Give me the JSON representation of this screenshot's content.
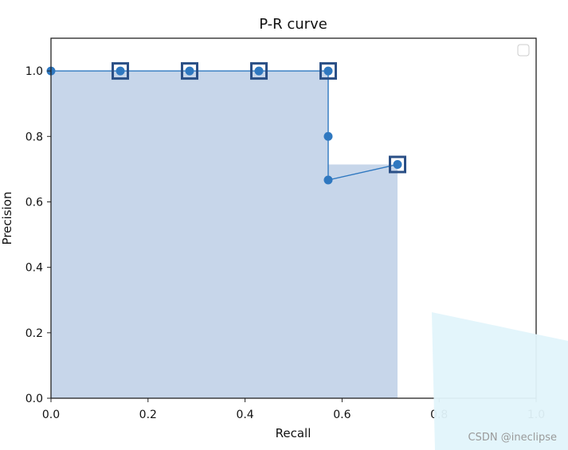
{
  "chart_data": {
    "type": "line",
    "title": "P-R curve",
    "xlabel": "Recall",
    "ylabel": "Precision",
    "xlim": [
      0.0,
      1.0
    ],
    "ylim": [
      0.0,
      1.1
    ],
    "xticks": [
      0.0,
      0.2,
      0.4,
      0.6,
      0.8,
      1.0
    ],
    "xtick_labels": [
      "0.0",
      "0.2",
      "0.4",
      "0.6",
      "0.8",
      "1.0"
    ],
    "yticks": [
      0.0,
      0.2,
      0.4,
      0.6,
      0.8,
      1.0
    ],
    "ytick_labels": [
      "0.0",
      "0.2",
      "0.4",
      "0.6",
      "0.8",
      "1.0"
    ],
    "grid": false,
    "legend": "top-right",
    "series": [
      {
        "type": "line",
        "x": [
          0.0,
          0.1429,
          0.2857,
          0.4286,
          0.5714,
          0.5714,
          0.5714,
          0.7143
        ],
        "y": [
          1.0,
          1.0,
          1.0,
          1.0,
          1.0,
          0.8,
          0.6667,
          0.7143
        ],
        "color": "#2f78c0"
      },
      {
        "type": "area",
        "x": [
          0.0,
          0.5714,
          0.5714,
          0.7143,
          0.7143
        ],
        "y": [
          1.0,
          1.0,
          0.7143,
          0.7143,
          0.0
        ],
        "fill": "#c7d6ea"
      },
      {
        "type": "scatter",
        "marker": "square",
        "x": [
          0.1429,
          0.2857,
          0.4286,
          0.5714,
          0.7143
        ],
        "y": [
          1.0,
          1.0,
          1.0,
          1.0,
          0.7143
        ],
        "color": "#2a4f86"
      }
    ]
  },
  "watermark": {
    "text": "CSDN @ineclipse",
    "overlay_color": "#e2f4fb"
  }
}
